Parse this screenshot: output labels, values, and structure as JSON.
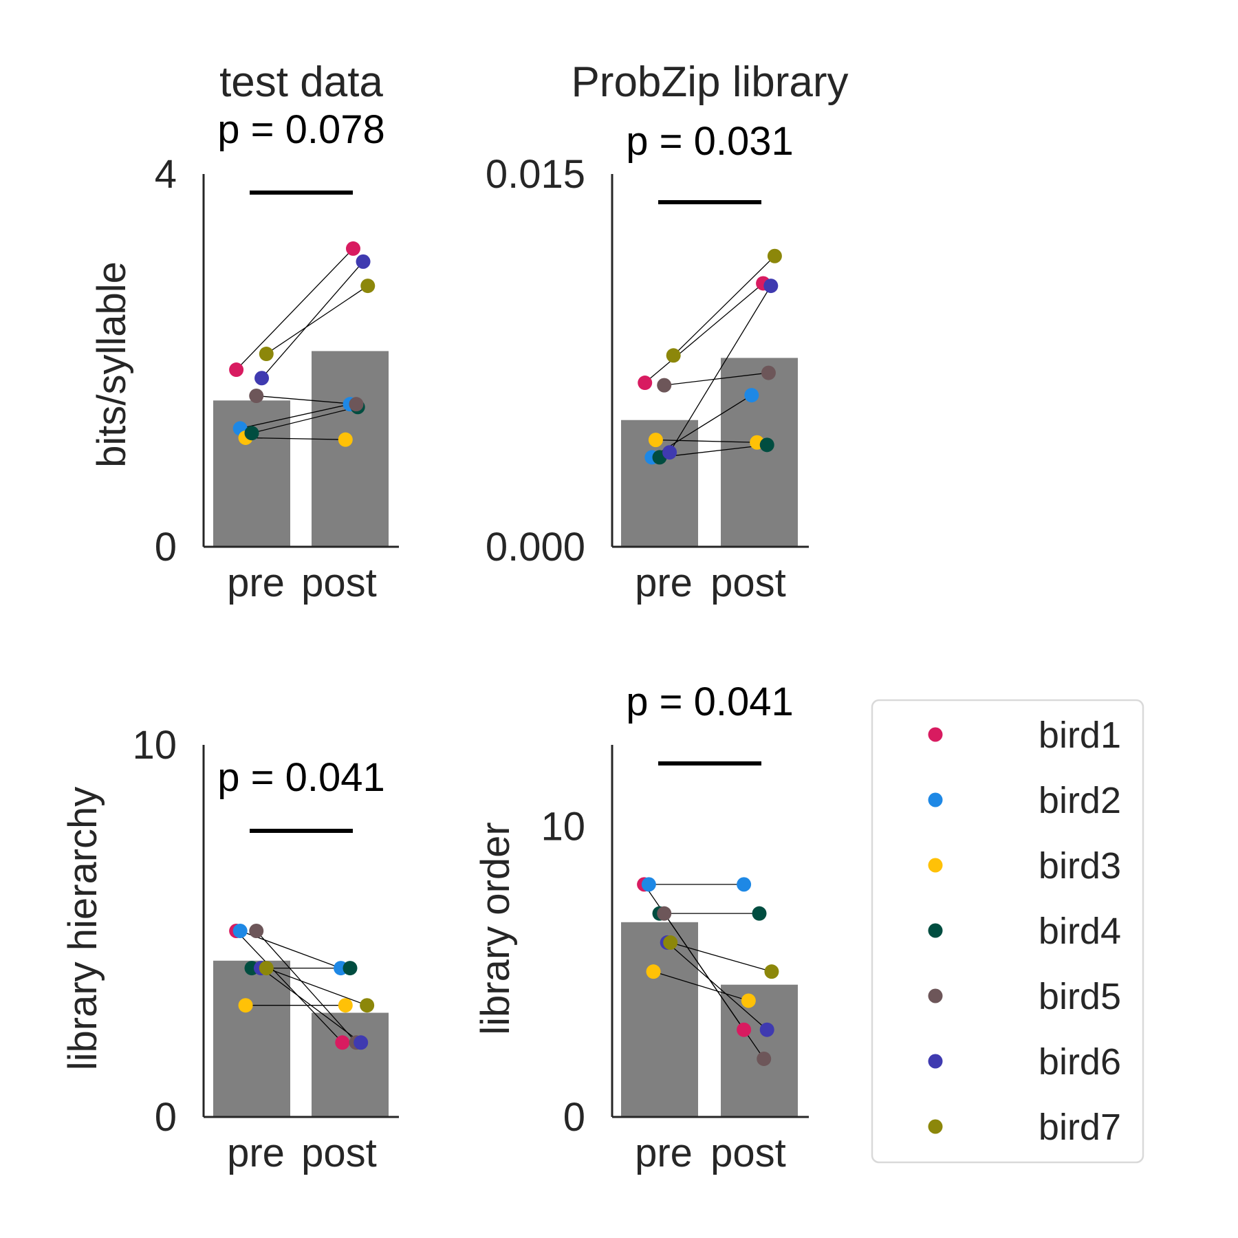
{
  "chart_data": [
    {
      "type": "bar",
      "title": "test data",
      "p_annotation": "p = 0.078",
      "ylabel": "bits/syllable",
      "categories": [
        "pre",
        "post"
      ],
      "ylim": [
        0,
        4
      ],
      "yticks": [
        "0",
        "4"
      ],
      "bar_values": [
        1.57,
        2.1
      ],
      "series": [
        {
          "name": "bird1",
          "values": [
            1.9,
            3.2
          ]
        },
        {
          "name": "bird2",
          "values": [
            1.27,
            1.53
          ]
        },
        {
          "name": "bird3",
          "values": [
            1.17,
            1.15
          ]
        },
        {
          "name": "bird4",
          "values": [
            1.22,
            1.5
          ]
        },
        {
          "name": "bird5",
          "values": [
            1.62,
            1.53
          ]
        },
        {
          "name": "bird6",
          "values": [
            1.81,
            3.06
          ]
        },
        {
          "name": "bird7",
          "values": [
            2.07,
            2.8
          ]
        }
      ]
    },
    {
      "type": "bar",
      "title": "ProbZip library",
      "p_annotation": "p = 0.031",
      "ylabel": "",
      "categories": [
        "pre",
        "post"
      ],
      "ylim": [
        0,
        0.015
      ],
      "yticks": [
        "0.000",
        "0.015"
      ],
      "bar_values": [
        0.0051,
        0.0076
      ],
      "series": [
        {
          "name": "bird1",
          "values": [
            0.0066,
            0.0106
          ]
        },
        {
          "name": "bird2",
          "values": [
            0.0036,
            0.0061
          ]
        },
        {
          "name": "bird3",
          "values": [
            0.0043,
            0.0042
          ]
        },
        {
          "name": "bird4",
          "values": [
            0.0036,
            0.0041
          ]
        },
        {
          "name": "bird5",
          "values": [
            0.0065,
            0.007
          ]
        },
        {
          "name": "bird6",
          "values": [
            0.0038,
            0.0105
          ]
        },
        {
          "name": "bird7",
          "values": [
            0.0077,
            0.0117
          ]
        }
      ]
    },
    {
      "type": "bar",
      "title": "",
      "p_annotation": "p = 0.041",
      "ylabel": "library hierarchy",
      "categories": [
        "pre",
        "post"
      ],
      "ylim": [
        0,
        10
      ],
      "yticks": [
        "0",
        "10"
      ],
      "bar_values": [
        4.2,
        2.8
      ],
      "series": [
        {
          "name": "bird1",
          "values": [
            5.0,
            2.0
          ]
        },
        {
          "name": "bird2",
          "values": [
            5.0,
            4.0
          ]
        },
        {
          "name": "bird3",
          "values": [
            3.0,
            3.0
          ]
        },
        {
          "name": "bird4",
          "values": [
            4.0,
            4.0
          ]
        },
        {
          "name": "bird5",
          "values": [
            5.0,
            2.0
          ]
        },
        {
          "name": "bird6",
          "values": [
            4.0,
            2.0
          ]
        },
        {
          "name": "bird7",
          "values": [
            4.0,
            3.0
          ]
        }
      ]
    },
    {
      "type": "bar",
      "title": "",
      "p_annotation": "p = 0.041",
      "ylabel": "library order",
      "categories": [
        "pre",
        "post"
      ],
      "ylim": [
        0,
        12.8
      ],
      "yticks": [
        "0",
        "10"
      ],
      "bar_values": [
        6.7,
        4.55
      ],
      "series": [
        {
          "name": "bird1",
          "values": [
            8.0,
            3.0
          ]
        },
        {
          "name": "bird2",
          "values": [
            8.0,
            8.0
          ]
        },
        {
          "name": "bird3",
          "values": [
            5.0,
            4.0
          ]
        },
        {
          "name": "bird4",
          "values": [
            7.0,
            7.0
          ]
        },
        {
          "name": "bird5",
          "values": [
            7.0,
            2.0
          ]
        },
        {
          "name": "bird6",
          "values": [
            6.0,
            3.0
          ]
        },
        {
          "name": "bird7",
          "values": [
            6.0,
            5.0
          ]
        }
      ]
    }
  ],
  "legend": {
    "placement": "right",
    "items": [
      {
        "label": "bird1",
        "color": "#d81b60"
      },
      {
        "label": "bird2",
        "color": "#1e88e5"
      },
      {
        "label": "bird3",
        "color": "#ffc107"
      },
      {
        "label": "bird4",
        "color": "#004d40"
      },
      {
        "label": "bird5",
        "color": "#6d5659"
      },
      {
        "label": "bird6",
        "color": "#3f3ab0"
      },
      {
        "label": "bird7",
        "color": "#8c870a"
      }
    ]
  },
  "colors": {
    "bar": "#808080",
    "axis": "#262626",
    "pair_line": "#000000",
    "sig_line": "#000000",
    "legend_border": "#d9d9d9"
  }
}
